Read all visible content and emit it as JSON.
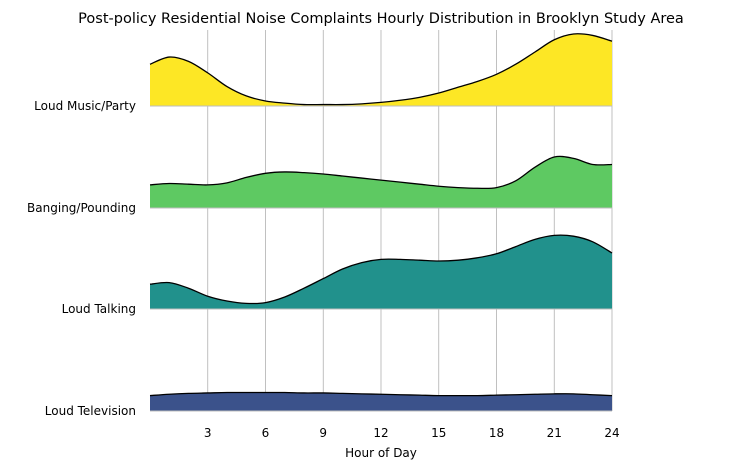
{
  "chart_data": {
    "type": "ridgeline",
    "title": "Post-policy Residential Noise Complaints Hourly Distribution in Brooklyn Study Area",
    "xlabel": "Hour of Day",
    "ylabel": "",
    "xlim": [
      0,
      24
    ],
    "xticks": [
      3,
      6,
      9,
      12,
      15,
      18,
      21,
      24
    ],
    "grid": "vertical",
    "series": [
      {
        "name": "Loud Music/Party",
        "color": "#fde725",
        "hours": [
          0,
          1,
          2,
          3,
          4,
          5,
          6,
          7,
          8,
          9,
          10,
          11,
          12,
          13,
          14,
          15,
          16,
          17,
          18,
          19,
          20,
          21,
          22,
          23,
          24
        ],
        "density": [
          0.58,
          0.68,
          0.62,
          0.46,
          0.27,
          0.14,
          0.07,
          0.04,
          0.02,
          0.02,
          0.02,
          0.03,
          0.05,
          0.08,
          0.12,
          0.18,
          0.26,
          0.34,
          0.44,
          0.58,
          0.75,
          0.92,
          1.0,
          0.98,
          0.9
        ]
      },
      {
        "name": "Banging/Pounding",
        "color": "#5ec962",
        "hours": [
          0,
          1,
          2,
          3,
          4,
          5,
          6,
          7,
          8,
          9,
          10,
          11,
          12,
          13,
          14,
          15,
          16,
          17,
          18,
          19,
          20,
          21,
          22,
          23,
          24
        ],
        "density": [
          0.34,
          0.36,
          0.35,
          0.34,
          0.37,
          0.45,
          0.51,
          0.53,
          0.52,
          0.5,
          0.47,
          0.44,
          0.41,
          0.38,
          0.35,
          0.32,
          0.3,
          0.29,
          0.3,
          0.4,
          0.6,
          0.75,
          0.73,
          0.64,
          0.64
        ]
      },
      {
        "name": "Loud Talking",
        "color": "#21918c",
        "hours": [
          0,
          1,
          2,
          3,
          4,
          5,
          6,
          7,
          8,
          9,
          10,
          11,
          12,
          13,
          14,
          15,
          16,
          17,
          18,
          19,
          20,
          21,
          22,
          23,
          24
        ],
        "density": [
          0.31,
          0.33,
          0.26,
          0.16,
          0.1,
          0.07,
          0.08,
          0.15,
          0.26,
          0.38,
          0.5,
          0.58,
          0.62,
          0.62,
          0.61,
          0.6,
          0.61,
          0.64,
          0.69,
          0.78,
          0.87,
          0.92,
          0.91,
          0.84,
          0.7
        ]
      },
      {
        "name": "Loud Television",
        "color": "#3b528b",
        "hours": [
          0,
          1,
          2,
          3,
          4,
          5,
          6,
          7,
          8,
          9,
          10,
          11,
          12,
          13,
          14,
          15,
          16,
          17,
          18,
          19,
          20,
          21,
          22,
          23,
          24
        ],
        "density": [
          0.35,
          0.38,
          0.4,
          0.41,
          0.42,
          0.42,
          0.42,
          0.42,
          0.41,
          0.41,
          0.4,
          0.39,
          0.38,
          0.37,
          0.36,
          0.35,
          0.35,
          0.35,
          0.36,
          0.37,
          0.38,
          0.39,
          0.39,
          0.37,
          0.35
        ]
      }
    ]
  }
}
